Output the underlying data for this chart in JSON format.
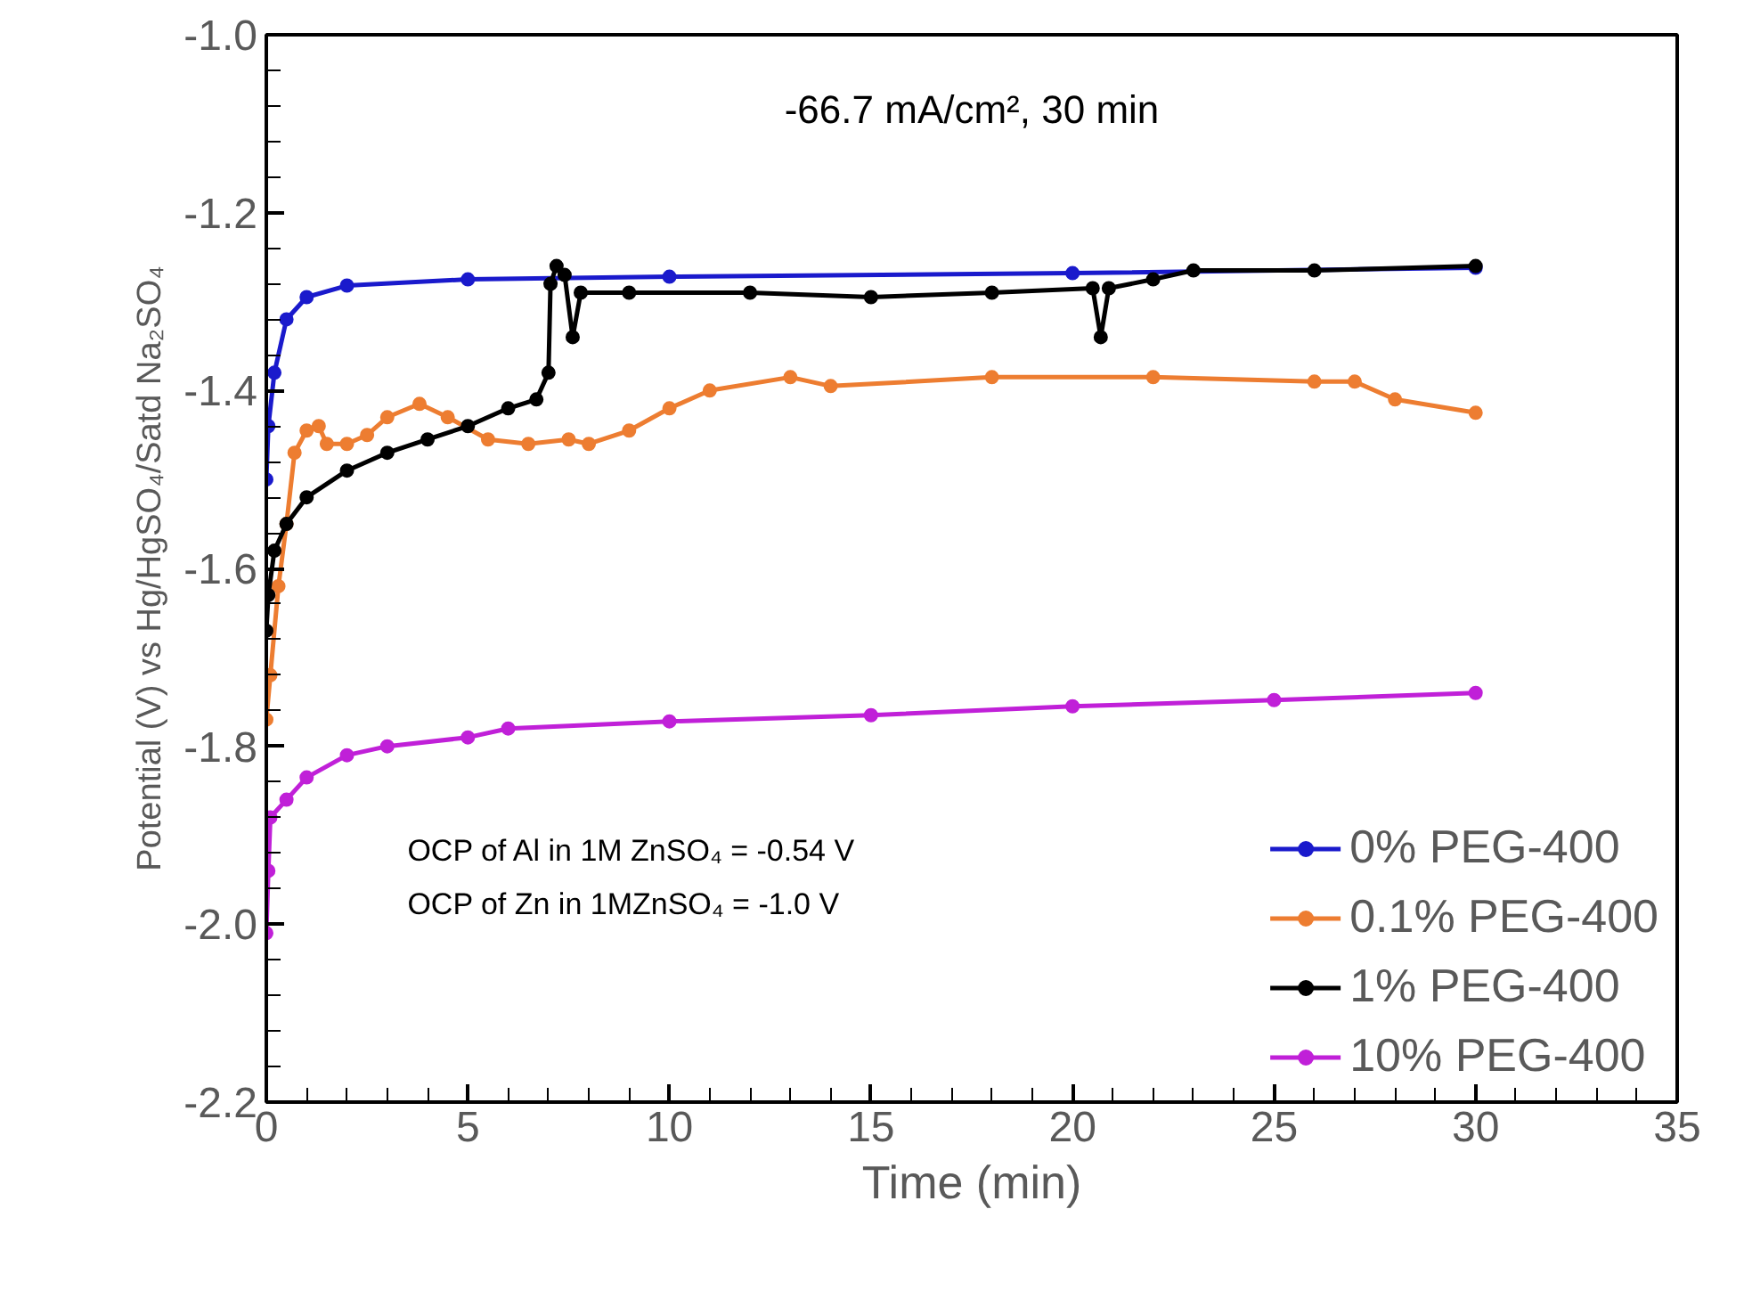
{
  "chart_data": {
    "type": "line",
    "xlabel": "Time (min)",
    "ylabel": "Potential (V) vs Hg/HgSO₄/Satd Na₂SO₄",
    "annotations": [
      "-66.7 mA/cm², 30 min",
      "OCP of Al in 1M ZnSO₄ = -0.54 V",
      "OCP of Zn in 1MZnSO₄ = -1.0 V"
    ],
    "xlim": [
      0,
      35
    ],
    "xticks": [
      0,
      5,
      10,
      15,
      20,
      25,
      30,
      35
    ],
    "ylim": [
      -2.2,
      -1.0
    ],
    "yticks": [
      {
        "value": -2.2,
        "label": "-2.2"
      },
      {
        "value": -2.0,
        "label": "-2.0"
      },
      {
        "value": -1.8,
        "label": "-1.8"
      },
      {
        "value": -1.6,
        "label": "-1.6"
      },
      {
        "value": -1.4,
        "label": "-1.4"
      },
      {
        "value": -1.2,
        "label": "-1.2"
      },
      {
        "value": -1.0,
        "label": "-1.0"
      }
    ],
    "marker": "circle",
    "legend": "bottom right",
    "grid": false,
    "series": [
      {
        "name": "0% PEG-400",
        "color": "#1a1acc",
        "x": [
          0,
          0.05,
          0.2,
          0.5,
          1,
          2,
          5,
          10,
          20,
          30
        ],
        "values": [
          -1.5,
          -1.44,
          -1.38,
          -1.32,
          -1.295,
          -1.282,
          -1.275,
          -1.272,
          -1.268,
          -1.262
        ]
      },
      {
        "name": "0.1% PEG-400",
        "color": "#ed7d31",
        "x": [
          0,
          0.1,
          0.3,
          0.5,
          0.7,
          1,
          1.3,
          1.5,
          2,
          2.5,
          3,
          3.8,
          4.5,
          5.5,
          6.5,
          7.5,
          8,
          9,
          10,
          11,
          13,
          14,
          18,
          22,
          26,
          27,
          28,
          30
        ],
        "values": [
          -1.77,
          -1.72,
          -1.62,
          -1.55,
          -1.47,
          -1.445,
          -1.44,
          -1.46,
          -1.46,
          -1.45,
          -1.43,
          -1.415,
          -1.43,
          -1.455,
          -1.46,
          -1.455,
          -1.46,
          -1.445,
          -1.42,
          -1.4,
          -1.385,
          -1.395,
          -1.385,
          -1.385,
          -1.39,
          -1.39,
          -1.41,
          -1.425
        ]
      },
      {
        "name": "1% PEG-400",
        "color": "#000000",
        "x": [
          0,
          0.05,
          0.2,
          0.5,
          1,
          2,
          3,
          4,
          5,
          6,
          6.7,
          7,
          7.05,
          7.2,
          7.4,
          7.6,
          7.8,
          9,
          12,
          15,
          18,
          20.5,
          20.7,
          20.9,
          22,
          23,
          26,
          30
        ],
        "values": [
          -1.67,
          -1.63,
          -1.58,
          -1.55,
          -1.52,
          -1.49,
          -1.47,
          -1.455,
          -1.44,
          -1.42,
          -1.41,
          -1.38,
          -1.28,
          -1.26,
          -1.27,
          -1.34,
          -1.29,
          -1.29,
          -1.29,
          -1.295,
          -1.29,
          -1.285,
          -1.34,
          -1.285,
          -1.275,
          -1.265,
          -1.265,
          -1.26
        ]
      },
      {
        "name": "10% PEG-400",
        "color": "#c020d8",
        "x": [
          0,
          0.05,
          0.1,
          0.5,
          1,
          2,
          3,
          5,
          6,
          10,
          15,
          20,
          25,
          30
        ],
        "values": [
          -2.01,
          -1.94,
          -1.88,
          -1.86,
          -1.835,
          -1.81,
          -1.8,
          -1.79,
          -1.78,
          -1.772,
          -1.765,
          -1.755,
          -1.748,
          -1.74
        ]
      }
    ]
  }
}
